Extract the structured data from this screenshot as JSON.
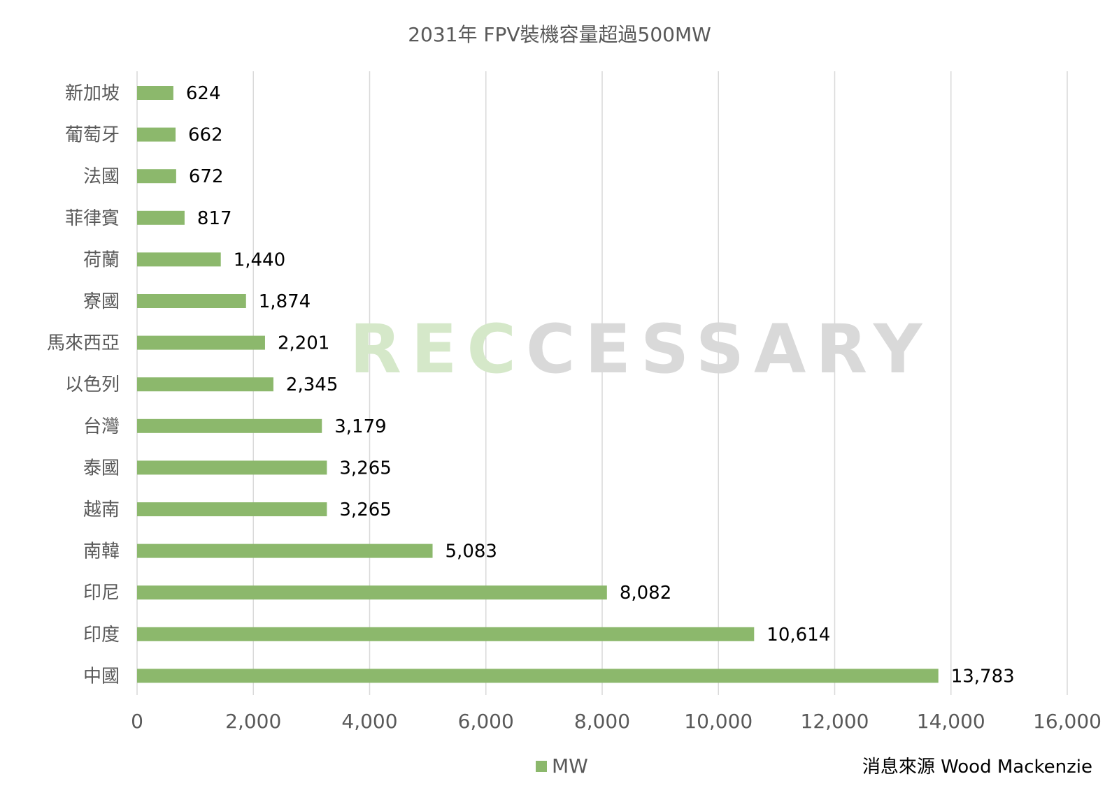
{
  "chart_data": {
    "type": "bar",
    "orientation": "horizontal",
    "title": "2031年 FPV裝機容量超過500MW",
    "categories": [
      "新加坡",
      "葡萄牙",
      "法國",
      "菲律賓",
      "荷蘭",
      "寮國",
      "馬來西亞",
      "以色列",
      "台灣",
      "泰國",
      "越南",
      "南韓",
      "印尼",
      "印度",
      "中國"
    ],
    "series": [
      {
        "name": "MW",
        "values": [
          624,
          662,
          672,
          817,
          1440,
          1874,
          2201,
          2345,
          3179,
          3265,
          3265,
          5083,
          8082,
          10614,
          13783
        ]
      }
    ],
    "data_labels": [
      "624",
      "662",
      "672",
      "817",
      "1,440",
      "1,874",
      "2,201",
      "2,345",
      "3,179",
      "3,265",
      "3,265",
      "5,083",
      "8,082",
      "10,614",
      "13,783"
    ],
    "xlim": [
      0,
      16000
    ],
    "xticks": [
      0,
      2000,
      4000,
      6000,
      8000,
      10000,
      12000,
      14000,
      16000
    ],
    "xtick_labels": [
      "0",
      "2,000",
      "4,000",
      "6,000",
      "8,000",
      "10,000",
      "12,000",
      "14,000",
      "16,000"
    ],
    "grid": "vertical",
    "legend_position": "bottom",
    "bar_color": "#8cb86c"
  },
  "source_note": "消息來源 Wood Mackenzie",
  "watermark": {
    "text_part1": "REC",
    "text_part2": "CESSARY",
    "color1": "#d5e8c9",
    "color2": "#d9d9d9"
  }
}
